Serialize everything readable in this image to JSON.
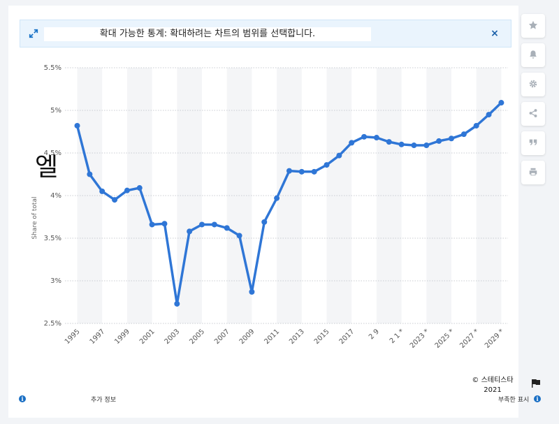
{
  "banner": {
    "text": "확대 가능한 통계: 확대하려는 차트의 범위를 선택합니다.",
    "close": "×"
  },
  "toolbar": {
    "icons": [
      "star-icon",
      "bell-icon",
      "gear-icon",
      "share-icon",
      "quote-icon",
      "print-icon"
    ]
  },
  "overlay_glyph": "엘",
  "footer": {
    "more_info": "추가 정보",
    "credit_line1": "© 스테티스타",
    "credit_line2": "2021",
    "report": "부족한 표시"
  },
  "colors": {
    "line": "#2f76d6",
    "banner_bg": "#eaf4fd",
    "accent": "#1a6fc4"
  },
  "chart_data": {
    "type": "line",
    "x": [
      1995,
      1996,
      1997,
      1998,
      1999,
      2000,
      2001,
      2002,
      2003,
      2004,
      2005,
      2006,
      2007,
      2008,
      2009,
      2010,
      2011,
      2012,
      2013,
      2014,
      2015,
      2016,
      2017,
      2018,
      2019,
      2020,
      2021,
      2022,
      2023,
      2024,
      2025,
      2026,
      2027,
      2028,
      2029
    ],
    "values": [
      4.82,
      4.25,
      4.05,
      3.95,
      4.06,
      4.09,
      3.66,
      3.67,
      2.73,
      3.58,
      3.66,
      3.66,
      3.62,
      3.53,
      2.87,
      3.69,
      3.97,
      4.29,
      4.28,
      4.28,
      4.36,
      4.47,
      4.62,
      4.69,
      4.68,
      4.63,
      4.6,
      4.59,
      4.59,
      4.64,
      4.67,
      4.72,
      4.82,
      4.95,
      5.09
    ],
    "x_tick_labels": [
      "1995",
      "1997",
      "1999",
      "2001",
      "2003",
      "2005",
      "2007",
      "2009",
      "2011",
      "2013",
      "2015",
      "2017",
      "2 9",
      "2 1 *",
      "2023 *",
      "2025 *",
      "2027 *",
      "2029 *"
    ],
    "y_tick_labels": [
      "2.5%",
      "3%",
      "3.5%",
      "4%",
      "4.5%",
      "5%",
      "5.5%"
    ],
    "ylim": [
      2.5,
      5.5
    ],
    "ylabel": "Share of total",
    "xlabel": "",
    "grid": true
  }
}
